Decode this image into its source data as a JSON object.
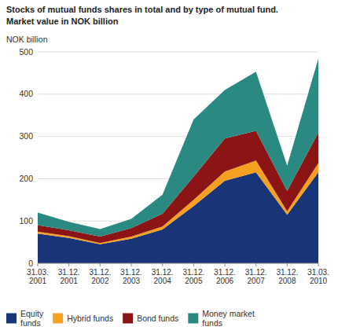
{
  "chart_data": {
    "type": "area",
    "stacked": true,
    "title": "Stocks of mutual funds shares in total and by type of mutual fund.",
    "subtitle": "Market value in NOK billion",
    "ylabel": "NOK billion",
    "categories": [
      "31.03.\n2001",
      "31.12.\n2001",
      "31.12.\n2002",
      "31.12.\n2003",
      "31.12.\n2004",
      "31.12.\n2005",
      "31.12.\n2006",
      "31.12.\n2007",
      "31.12.\n2008",
      "31.03.\n2010"
    ],
    "series": [
      {
        "name": "Equity\nfunds",
        "color": "#1a3478",
        "values": [
          70,
          60,
          45,
          58,
          80,
          135,
          195,
          215,
          115,
          215
        ]
      },
      {
        "name": "Hybrid funds",
        "color": "#f5a020",
        "values": [
          5,
          4,
          3,
          5,
          7,
          15,
          22,
          28,
          8,
          22
        ]
      },
      {
        "name": "Bond funds",
        "color": "#8b1515",
        "values": [
          15,
          14,
          15,
          20,
          30,
          55,
          78,
          70,
          48,
          72
        ]
      },
      {
        "name": "Money market\nfunds",
        "color": "#2a8a82",
        "values": [
          30,
          20,
          18,
          22,
          45,
          135,
          115,
          140,
          60,
          175
        ]
      }
    ],
    "ylim": [
      0,
      500
    ],
    "yticks": [
      0,
      100,
      200,
      300,
      400,
      500
    ],
    "grid": true,
    "legend": "lower left"
  }
}
